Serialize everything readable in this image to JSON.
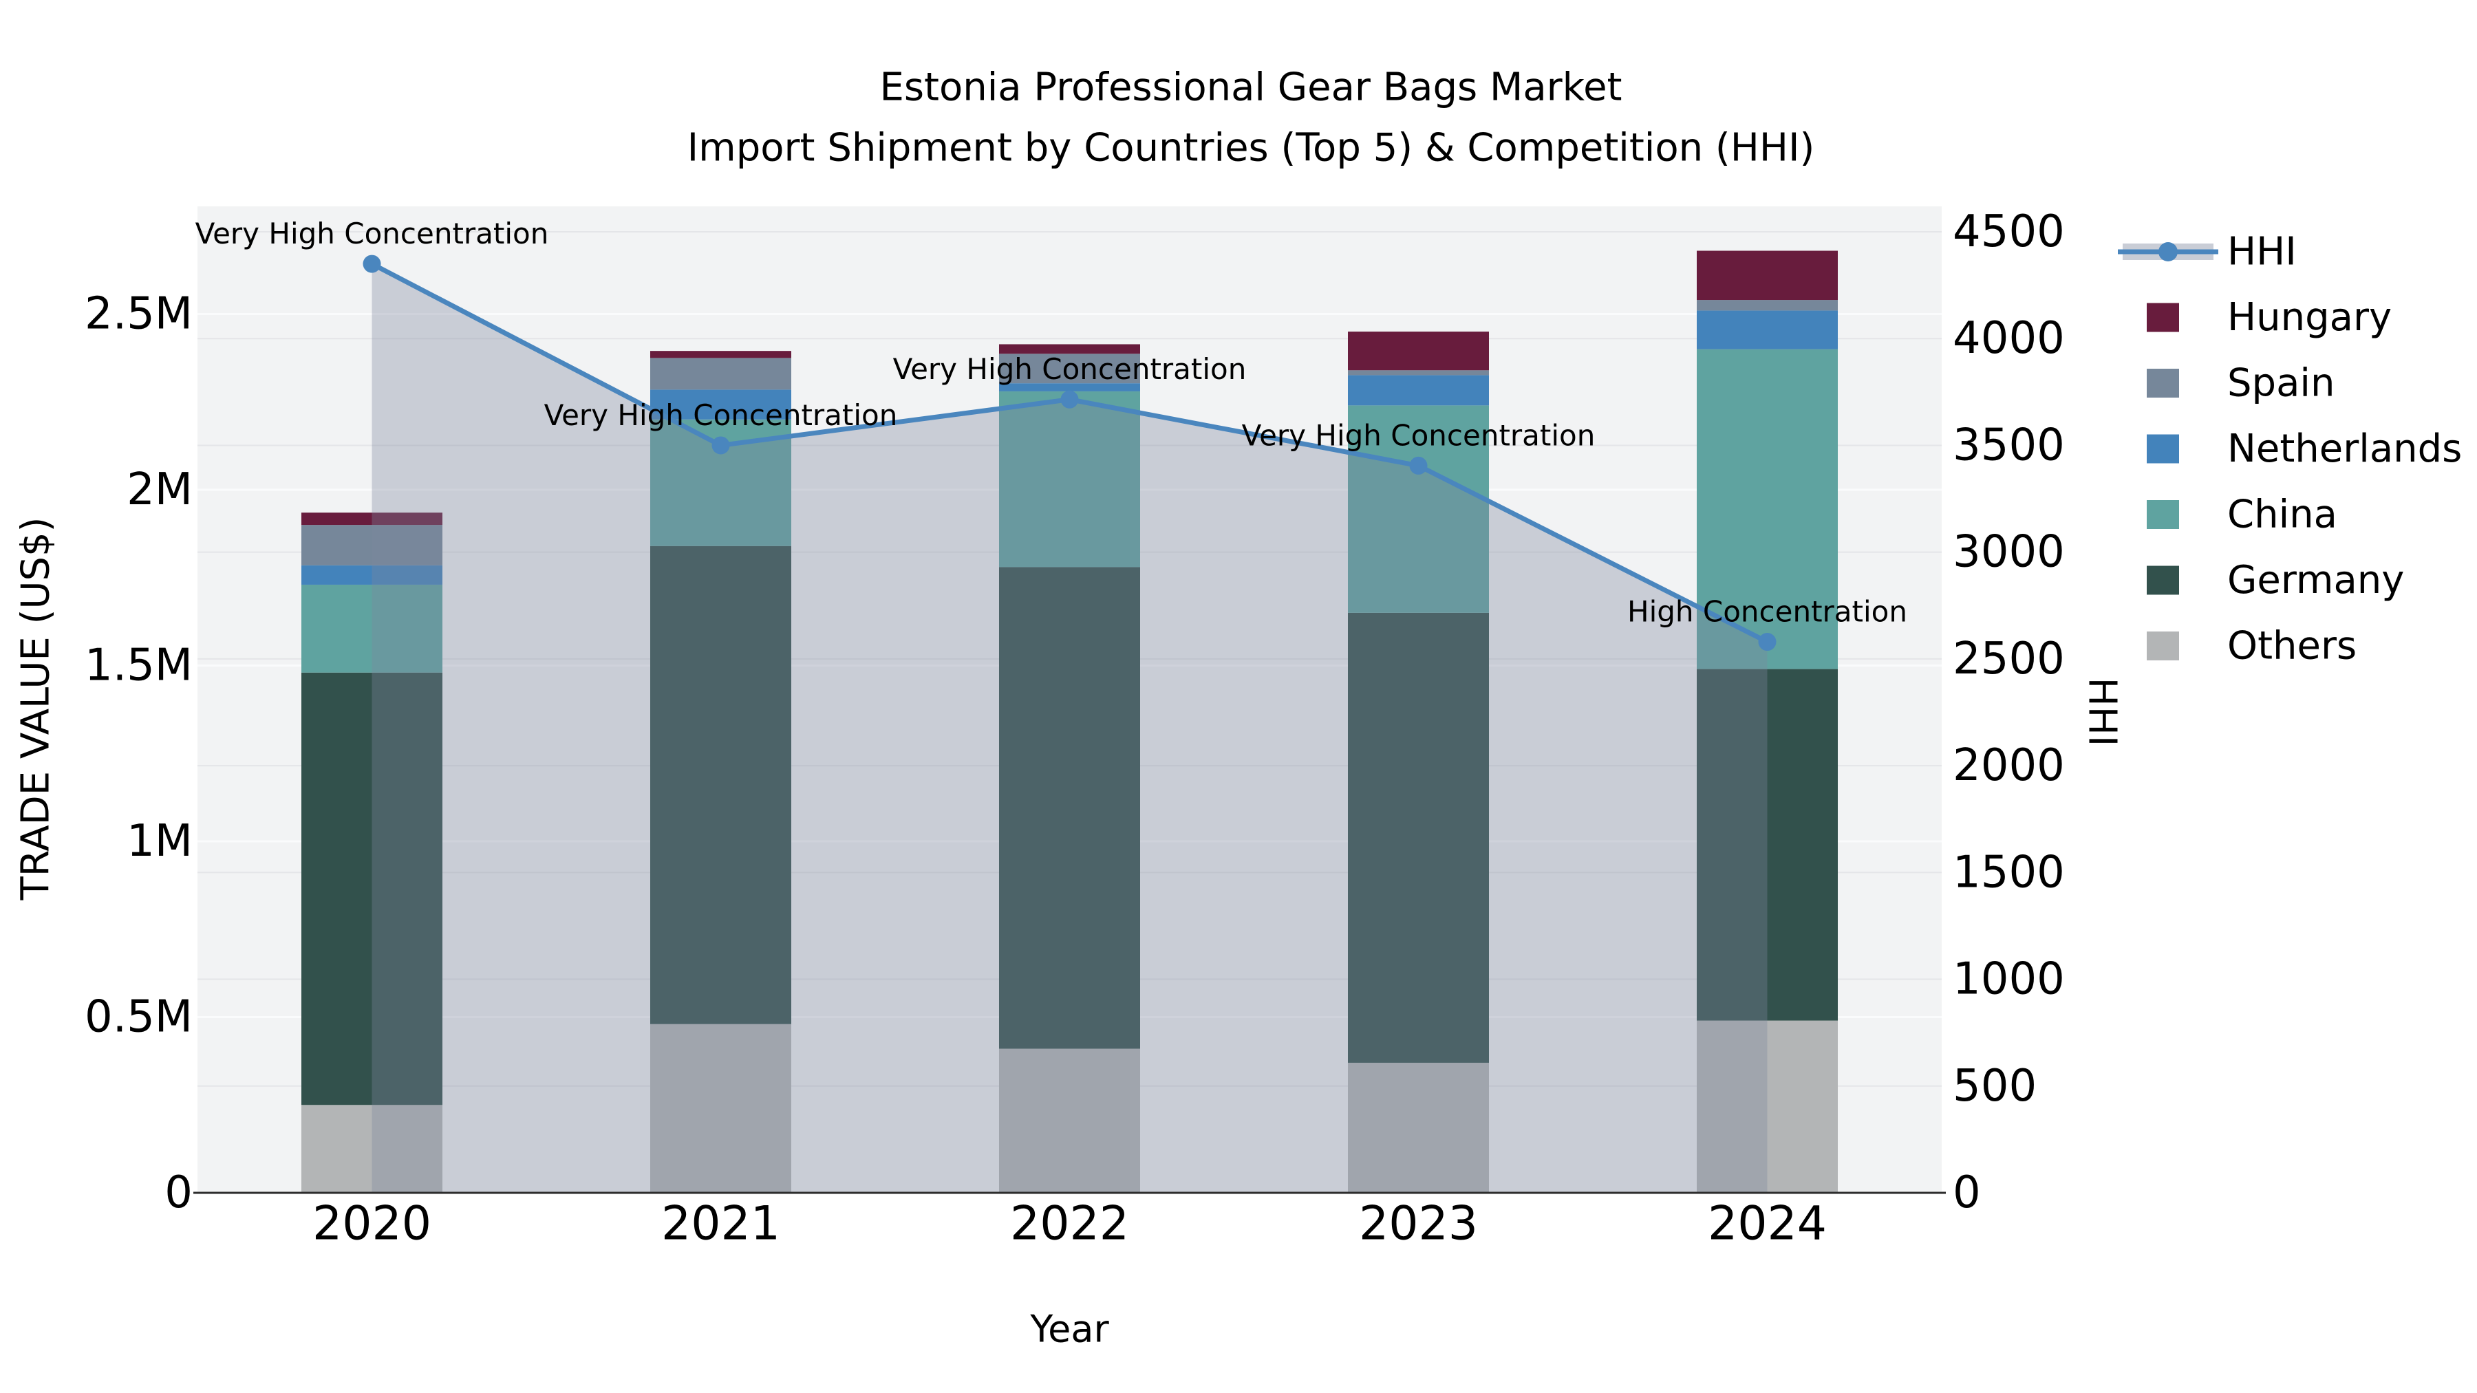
{
  "title": {
    "line1": "Estonia Professional Gear Bags Market",
    "line2": "Import Shipment by Countries (Top 5) & Competition (HHI)"
  },
  "axes": {
    "x_label": "Year",
    "y_left_label": "TRADE VALUE (US$)",
    "y_right_label": "HHI",
    "y_left_ticks": [
      {
        "label": "0",
        "value": 0
      },
      {
        "label": "0.5M",
        "value": 500000
      },
      {
        "label": "1M",
        "value": 1000000
      },
      {
        "label": "1.5M",
        "value": 1500000
      },
      {
        "label": "2M",
        "value": 2000000
      },
      {
        "label": "2.5M",
        "value": 2500000
      }
    ],
    "y_right_ticks": [
      {
        "label": "0",
        "value": 0
      },
      {
        "label": "500",
        "value": 500
      },
      {
        "label": "1000",
        "value": 1000
      },
      {
        "label": "1500",
        "value": 1500
      },
      {
        "label": "2000",
        "value": 2000
      },
      {
        "label": "2500",
        "value": 2500
      },
      {
        "label": "3000",
        "value": 3000
      },
      {
        "label": "3500",
        "value": 3500
      },
      {
        "label": "4000",
        "value": 4000
      },
      {
        "label": "4500",
        "value": 4500
      }
    ]
  },
  "legend": {
    "items": [
      {
        "label": "HHI",
        "type": "line",
        "line_color": "#4a86be",
        "band_color": "#c9cdd6"
      },
      {
        "label": "Hungary",
        "type": "swatch",
        "color": "#681c3d"
      },
      {
        "label": "Spain",
        "type": "swatch",
        "color": "#76879a"
      },
      {
        "label": "Netherlands",
        "type": "swatch",
        "color": "#4383bb"
      },
      {
        "label": "China",
        "type": "swatch",
        "color": "#5fa3a0"
      },
      {
        "label": "Germany",
        "type": "swatch",
        "color": "#32514c"
      },
      {
        "label": "Others",
        "type": "swatch",
        "color": "#b3b5b6"
      }
    ]
  },
  "chart_data": {
    "type": "bar+line",
    "categories": [
      "2020",
      "2021",
      "2022",
      "2023",
      "2024"
    ],
    "stack_order_bottom_to_top": [
      "Others",
      "Germany",
      "China",
      "Netherlands",
      "Spain",
      "Hungary"
    ],
    "series": [
      {
        "name": "Others",
        "color": "#b3b5b6",
        "values": [
          250000,
          480000,
          410000,
          370000,
          490000
        ]
      },
      {
        "name": "Germany",
        "color": "#32514c",
        "values": [
          1230000,
          1360000,
          1370000,
          1280000,
          1000000
        ]
      },
      {
        "name": "China",
        "color": "#5fa3a0",
        "values": [
          250000,
          360000,
          500000,
          590000,
          910000
        ]
      },
      {
        "name": "Netherlands",
        "color": "#4383bb",
        "values": [
          55000,
          85000,
          23000,
          86000,
          110000
        ]
      },
      {
        "name": "Spain",
        "color": "#76879a",
        "values": [
          115000,
          90000,
          84000,
          14000,
          30000
        ]
      },
      {
        "name": "Hungary",
        "color": "#681c3d",
        "values": [
          35000,
          20000,
          27000,
          110000,
          140000
        ]
      }
    ],
    "bar_totals": [
      1935000,
      2395000,
      2414000,
      2450000,
      2680000
    ],
    "hhi": {
      "name": "HHI",
      "line_color": "#4a86be",
      "area_color": "rgba(125,134,158,0.35)",
      "values": [
        4350,
        3500,
        3715,
        3405,
        2580
      ]
    },
    "annotations": [
      {
        "category": "2020",
        "label": "Very High Concentration"
      },
      {
        "category": "2021",
        "label": "Very High Concentration"
      },
      {
        "category": "2022",
        "label": "Very High Concentration"
      },
      {
        "category": "2023",
        "label": "Very High Concentration"
      },
      {
        "category": "2024",
        "label": "High Concentration"
      }
    ],
    "y_left_range": [
      0,
      2810000
    ],
    "y_right_range": [
      0,
      4500
    ],
    "grid": "horizontal",
    "legend_position": "right"
  },
  "style": {
    "plot_bg": "#f2f3f4",
    "grid_right_color": "#e4e5e8",
    "grid_left_color": "#fafbfc",
    "axis_line_color": "#2d2d2d",
    "text_color": "#000000"
  }
}
